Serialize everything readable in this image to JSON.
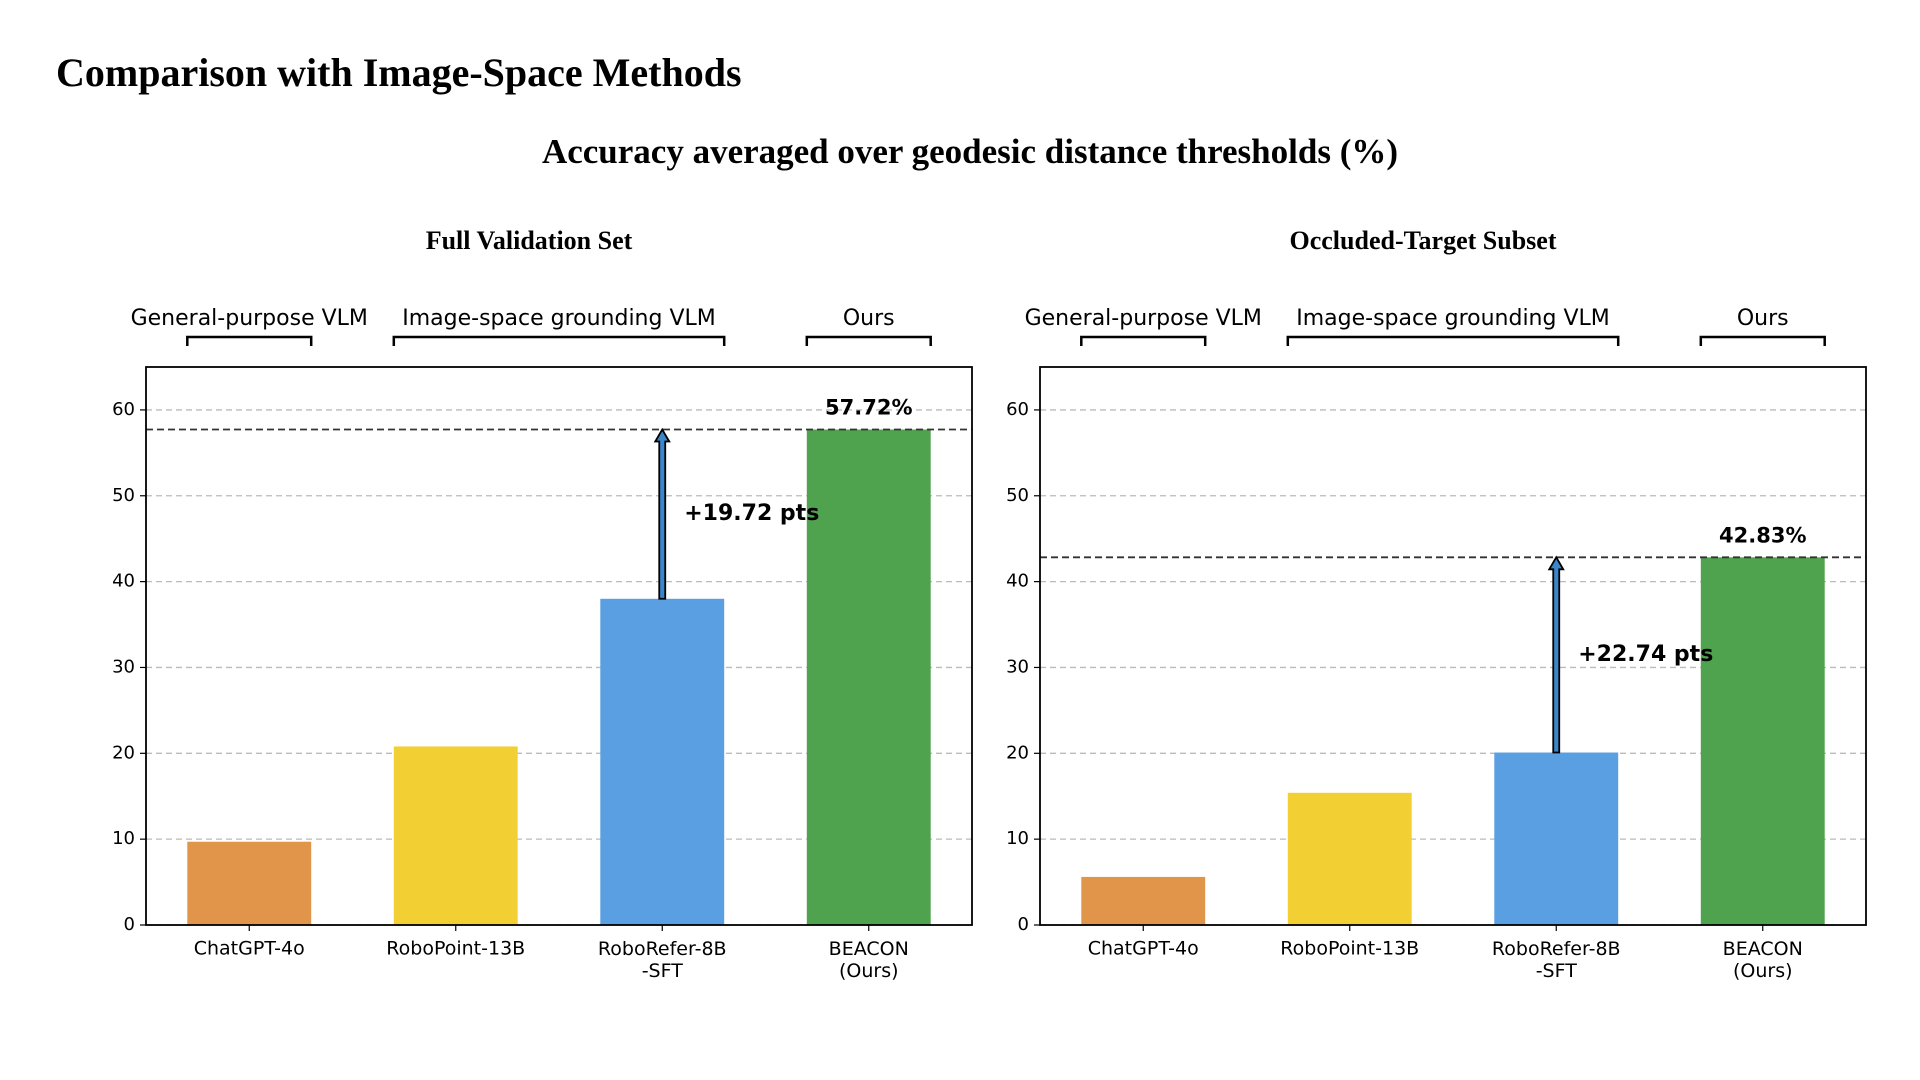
{
  "page": {
    "title": "Comparison with Image-Space Methods",
    "subtitle": "Accuracy averaged over geodesic distance thresholds (%)"
  },
  "chart_data": [
    {
      "type": "bar",
      "title": "Full Validation Set",
      "categories": [
        "ChatGPT-4o",
        "RoboPoint-13B",
        "RoboRefer-8B\n-SFT",
        "BEACON\n(Ours)"
      ],
      "values": [
        9.7,
        20.8,
        38.0,
        57.72
      ],
      "value_labels": [
        null,
        null,
        null,
        "57.72%"
      ],
      "colors": [
        "#e0954b",
        "#f2d034",
        "#5b9fe3",
        "#4fa34e"
      ],
      "groups": [
        {
          "name": "General-purpose VLM",
          "start": 0,
          "end": 0
        },
        {
          "name": "Image-space grounding VLM",
          "start": 1,
          "end": 2
        },
        {
          "name": "Ours",
          "start": 3,
          "end": 3
        }
      ],
      "gain": {
        "from": 2,
        "to": 3,
        "label": "+19.72 pts"
      },
      "ylim": [
        0,
        65
      ],
      "yticks": [
        0,
        10,
        20,
        30,
        40,
        50,
        60
      ],
      "grid": true
    },
    {
      "type": "bar",
      "title": "Occluded-Target Subset",
      "categories": [
        "ChatGPT-4o",
        "RoboPoint-13B",
        "RoboRefer-8B\n-SFT",
        "BEACON\n(Ours)"
      ],
      "values": [
        5.6,
        15.4,
        20.09,
        42.83
      ],
      "value_labels": [
        null,
        null,
        null,
        "42.83%"
      ],
      "colors": [
        "#e0954b",
        "#f2d034",
        "#5b9fe3",
        "#4fa34e"
      ],
      "groups": [
        {
          "name": "General-purpose VLM",
          "start": 0,
          "end": 0
        },
        {
          "name": "Image-space grounding VLM",
          "start": 1,
          "end": 2
        },
        {
          "name": "Ours",
          "start": 3,
          "end": 3
        }
      ],
      "gain": {
        "from": 2,
        "to": 3,
        "label": "+22.74 pts"
      },
      "ylim": [
        0,
        65
      ],
      "yticks": [
        0,
        10,
        20,
        30,
        40,
        50,
        60
      ],
      "grid": true
    }
  ]
}
